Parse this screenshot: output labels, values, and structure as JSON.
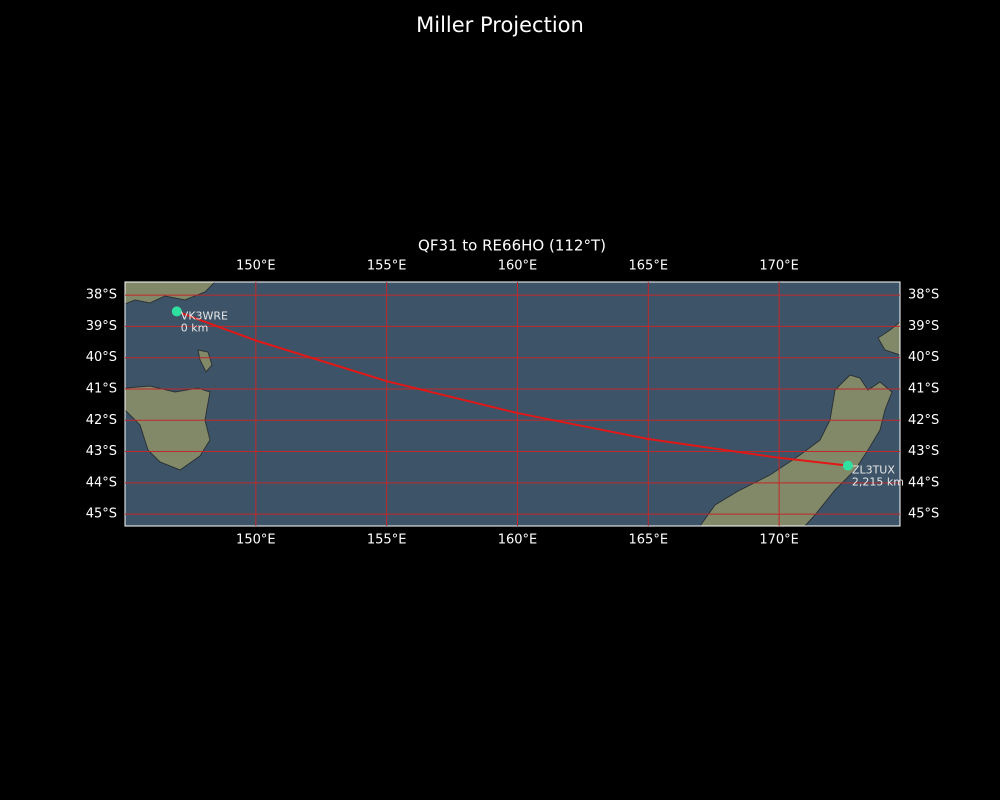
{
  "chart_data": {
    "type": "map",
    "title": "Miller Projection",
    "subtitle": "QF31 to RE66HO (112°T)",
    "xlim": [
      145,
      174.62
    ],
    "ylim": [
      -45.38,
      -37.58
    ],
    "xticks": [
      {
        "value": 150,
        "label": "150°E"
      },
      {
        "value": 155,
        "label": "155°E"
      },
      {
        "value": 160,
        "label": "160°E"
      },
      {
        "value": 165,
        "label": "165°E"
      },
      {
        "value": 170,
        "label": "170°E"
      }
    ],
    "yticks": [
      {
        "value": -38,
        "label": "38°S"
      },
      {
        "value": -39,
        "label": "39°S"
      },
      {
        "value": -40,
        "label": "40°S"
      },
      {
        "value": -41,
        "label": "41°S"
      },
      {
        "value": -42,
        "label": "42°S"
      },
      {
        "value": -43,
        "label": "43°S"
      },
      {
        "value": -44,
        "label": "44°S"
      },
      {
        "value": -45,
        "label": "45°S"
      }
    ],
    "grid": true,
    "grid_color": "#c0282a",
    "path": {
      "color": "#e01818",
      "x": [
        146.98,
        150,
        155,
        160,
        165,
        170,
        172.63
      ],
      "values": [
        -38.52,
        -39.45,
        -40.75,
        -41.77,
        -42.6,
        -43.2,
        -43.45
      ]
    },
    "marker_color": "#2fe0a0",
    "stations": [
      {
        "label": "VK3WRE",
        "lon": 146.98,
        "lat": -38.52,
        "distance": 0,
        "distance_label": "0 km"
      },
      {
        "label": "ZL3TUX",
        "lon": 172.63,
        "lat": -43.45,
        "distance": 2215,
        "distance_label": "2,215 km"
      }
    ]
  }
}
